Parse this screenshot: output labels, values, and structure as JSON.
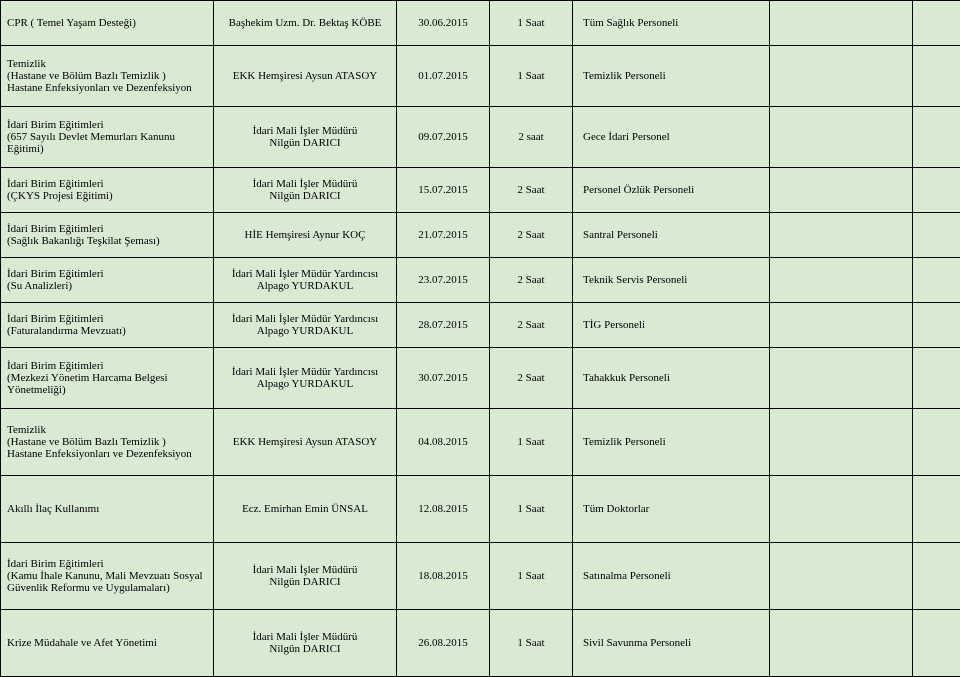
{
  "rows": [
    {
      "desc": "CPR ( Temel Yaşam Desteği)",
      "instr": "Başhekim Uzm. Dr. Bektaş KÖBE",
      "date": "30.06.2015",
      "dur": "1 Saat",
      "aud": "Tüm Sağlık Personeli",
      "cls": ""
    },
    {
      "desc": "Temizlik\n(Hastane ve Bölüm Bazlı Temizlik )\nHastane Enfeksiyonları ve Dezenfeksiyon",
      "instr": "EKK Hemşiresi Aysun ATASOY",
      "date": "01.07.2015",
      "dur": "1 Saat",
      "aud": "Temizlik Personeli",
      "cls": "tall"
    },
    {
      "desc": "İdari Birim Eğitimleri\n(657 Sayılı Devlet Memurları Kanunu Eğitimi)",
      "instr": "İdari Mali İşler Müdürü\nNilgün DARICI",
      "date": "09.07.2015",
      "dur": "2 saat",
      "aud": "Gece İdari Personel",
      "cls": "tall"
    },
    {
      "desc": "İdari Birim Eğitimleri\n(ÇKYS Projesi Eğitimi)",
      "instr": "İdari Mali İşler Müdürü\nNilgün DARICI",
      "date": "15.07.2015",
      "dur": "2 Saat",
      "aud": "Personel Özlük Personeli",
      "cls": ""
    },
    {
      "desc": "İdari Birim Eğitimleri\n(Sağlık Bakanlığı Teşkilat Şeması)",
      "instr": "HİE Hemşiresi Aynur KOÇ",
      "date": "21.07.2015",
      "dur": "2 Saat",
      "aud": "Santral Personeli",
      "cls": ""
    },
    {
      "desc": "İdari Birim Eğitimleri\n(Su Analizleri)",
      "instr": "İdari Mali İşler Müdür Yardıncısı\nAlpago YURDAKUL",
      "date": "23.07.2015",
      "dur": "2 Saat",
      "aud": "Teknik Servis Personeli",
      "cls": ""
    },
    {
      "desc": "İdari Birim Eğitimleri\n(Faturalandırma Mevzuatı)",
      "instr": "İdari Mali İşler Müdür Yardıncısı\nAlpago YURDAKUL",
      "date": "28.07.2015",
      "dur": "2 Saat",
      "aud": "TİG Personeli",
      "cls": ""
    },
    {
      "desc": "İdari Birim Eğitimleri\n(Mezkezi Yönetim Harcama Belgesi Yönetmeliği)",
      "instr": "İdari Mali İşler Müdür Yardıncısı\nAlpago YURDAKUL",
      "date": "30.07.2015",
      "dur": "2 Saat",
      "aud": "Tahakkuk Personeli",
      "cls": "tall"
    },
    {
      "desc": "Temizlik\n(Hastane ve Bölüm Bazlı Temizlik )\nHastane Enfeksiyonları ve Dezenfeksiyon",
      "instr": "EKK Hemşiresi Aysun ATASOY",
      "date": "04.08.2015",
      "dur": "1 Saat",
      "aud": "Temizlik Personeli",
      "cls": "taller"
    },
    {
      "desc": "Akıllı İlaç Kullanımı",
      "instr": "Ecz. Emirhan Emin ÜNSAL",
      "date": "12.08.2015",
      "dur": "1 Saat",
      "aud": "Tüm Doktorlar",
      "cls": "taller"
    },
    {
      "desc": "İdari Birim Eğitimleri\n(Kamu İhale Kanunu, Mali Mevzuatı Sosyal Güvenlik Reformu ve Uygulamaları)",
      "instr": "İdari Mali İşler Müdürü\nNilgün DARICI",
      "date": "18.08.2015",
      "dur": "1 Saat",
      "aud": "Satınalma Personeli",
      "cls": "taller"
    },
    {
      "desc": "Krize Müdahale ve Afet Yönetimi",
      "instr": "İdari Mali İşler Müdürü\nNilgün DARICI",
      "date": "26.08.2015",
      "dur": "1 Saat",
      "aud": "Sivil Savunma Personeli",
      "cls": "taller"
    }
  ]
}
